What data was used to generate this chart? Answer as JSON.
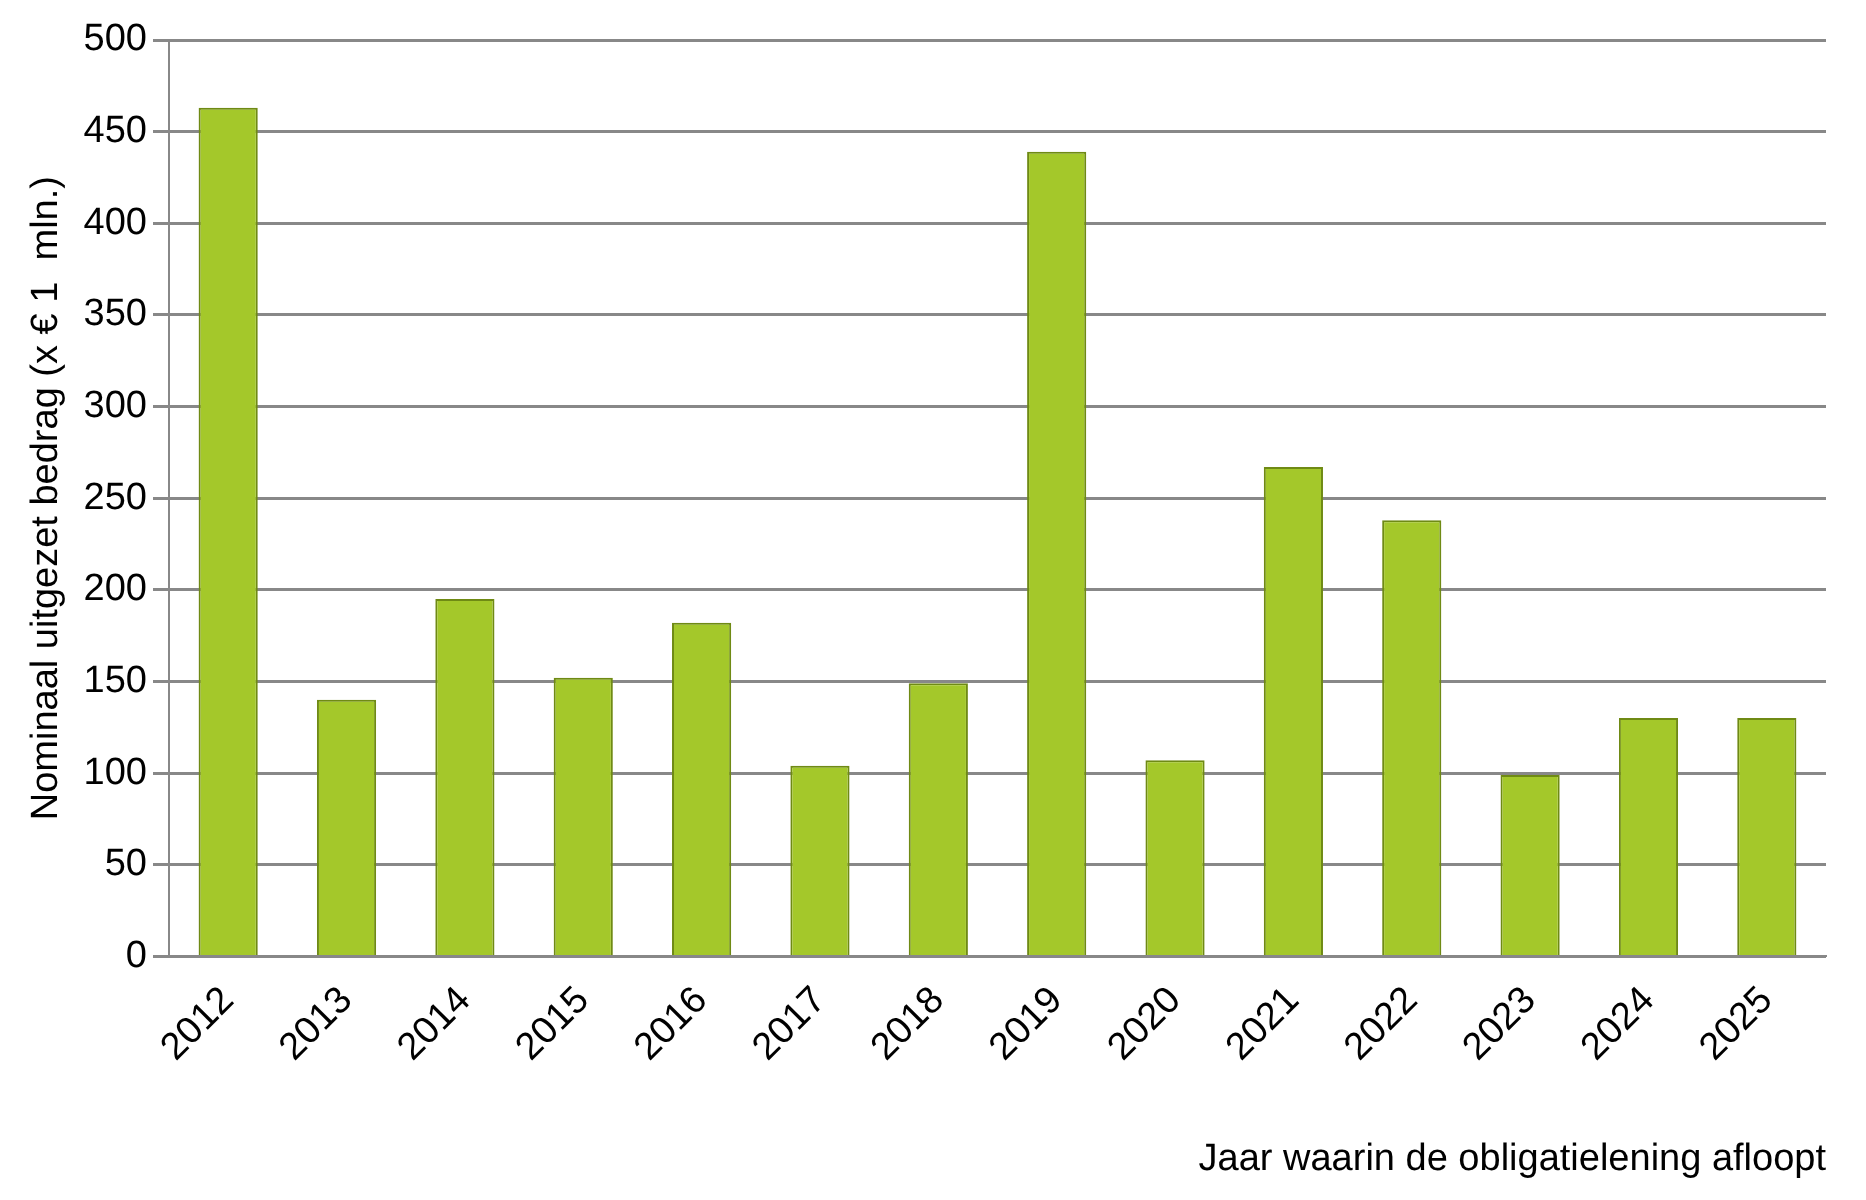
{
  "chart_data": {
    "type": "bar",
    "xlabel": "Jaar waarin de obligatielening afloopt",
    "ylabel": "Nominaal uitgezet bedrag (x € 1  mln.)",
    "categories": [
      "2012",
      "2013",
      "2014",
      "2015",
      "2016",
      "2017",
      "2018",
      "2019",
      "2020",
      "2021",
      "2022",
      "2023",
      "2024",
      "2025"
    ],
    "values": [
      463,
      140,
      195,
      152,
      182,
      104,
      149,
      439,
      107,
      267,
      238,
      99,
      130,
      130
    ],
    "color": "#a4c82a",
    "ylim": [
      0,
      500
    ],
    "yticks": [
      0,
      50,
      100,
      150,
      200,
      250,
      300,
      350,
      400,
      450,
      500
    ],
    "grid": "y",
    "legend": false
  }
}
